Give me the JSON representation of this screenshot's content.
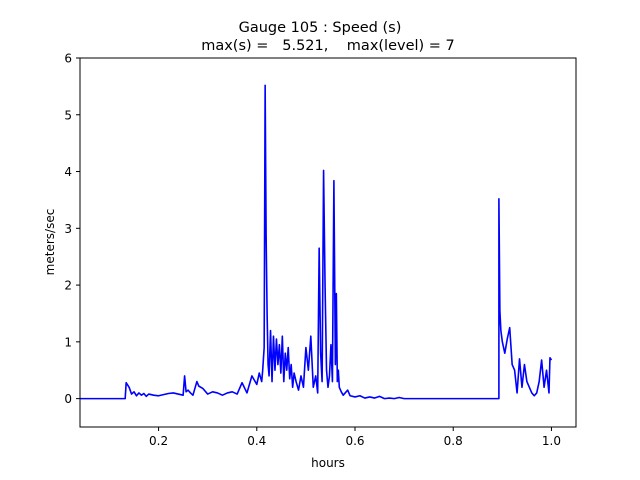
{
  "chart_data": {
    "type": "line",
    "title_line1": "Gauge 105 : Speed (s)",
    "title_line2": "max(s) =   5.521,    max(level) = 7",
    "xlabel": "hours",
    "ylabel": "meters/sec",
    "xlim": [
      0.04,
      1.05
    ],
    "ylim": [
      -0.5,
      6
    ],
    "xticks": [
      0.2,
      0.4,
      0.6,
      0.8,
      1.0
    ],
    "xtick_labels": [
      "0.2",
      "0.4",
      "0.6",
      "0.8",
      "1.0"
    ],
    "yticks": [
      0,
      1,
      2,
      3,
      4,
      5,
      6
    ],
    "ytick_labels": [
      "0",
      "1",
      "2",
      "3",
      "4",
      "5",
      "6"
    ],
    "grid": false,
    "series": [
      {
        "color": "#0000ff",
        "x": [
          0.04,
          0.132,
          0.134,
          0.14,
          0.145,
          0.15,
          0.155,
          0.16,
          0.165,
          0.17,
          0.175,
          0.18,
          0.19,
          0.2,
          0.21,
          0.22,
          0.23,
          0.24,
          0.25,
          0.253,
          0.256,
          0.26,
          0.265,
          0.27,
          0.278,
          0.282,
          0.29,
          0.3,
          0.31,
          0.32,
          0.33,
          0.34,
          0.35,
          0.36,
          0.37,
          0.38,
          0.39,
          0.4,
          0.405,
          0.41,
          0.412,
          0.415,
          0.417,
          0.419,
          0.421,
          0.423,
          0.425,
          0.428,
          0.431,
          0.434,
          0.437,
          0.44,
          0.443,
          0.446,
          0.449,
          0.452,
          0.455,
          0.458,
          0.461,
          0.464,
          0.467,
          0.47,
          0.473,
          0.476,
          0.48,
          0.485,
          0.49,
          0.495,
          0.5,
          0.505,
          0.51,
          0.515,
          0.52,
          0.524,
          0.527,
          0.53,
          0.533,
          0.536,
          0.539,
          0.542,
          0.545,
          0.548,
          0.551,
          0.554,
          0.557,
          0.56,
          0.562,
          0.564,
          0.566,
          0.568,
          0.572,
          0.576,
          0.58,
          0.585,
          0.59,
          0.6,
          0.61,
          0.62,
          0.63,
          0.64,
          0.65,
          0.66,
          0.67,
          0.68,
          0.69,
          0.7,
          0.75,
          0.8,
          0.85,
          0.893,
          0.893,
          0.895,
          0.897,
          0.9,
          0.905,
          0.91,
          0.915,
          0.92,
          0.925,
          0.93,
          0.935,
          0.94,
          0.945,
          0.95,
          0.955,
          0.96,
          0.965,
          0.97,
          0.975,
          0.98,
          0.985,
          0.99,
          0.995,
          0.997,
          1.0
        ],
        "y": [
          0,
          0,
          0.28,
          0.2,
          0.08,
          0.12,
          0.05,
          0.1,
          0.06,
          0.09,
          0.04,
          0.08,
          0.06,
          0.05,
          0.07,
          0.09,
          0.1,
          0.08,
          0.06,
          0.4,
          0.12,
          0.15,
          0.1,
          0.06,
          0.3,
          0.22,
          0.18,
          0.08,
          0.12,
          0.1,
          0.06,
          0.1,
          0.12,
          0.08,
          0.28,
          0.1,
          0.4,
          0.25,
          0.45,
          0.3,
          0.5,
          0.9,
          5.52,
          2.86,
          1.5,
          0.6,
          0.4,
          1.2,
          0.3,
          1.1,
          0.5,
          1.05,
          0.6,
          0.95,
          0.45,
          1.1,
          0.3,
          0.8,
          0.5,
          0.9,
          0.35,
          0.6,
          0.2,
          0.45,
          0.3,
          0.15,
          0.4,
          0.2,
          0.9,
          0.5,
          1.1,
          0.2,
          0.4,
          0.1,
          2.65,
          0.8,
          0.3,
          4.02,
          2.0,
          0.5,
          0.2,
          0.4,
          0.95,
          0.3,
          3.84,
          0.6,
          1.85,
          0.3,
          0.5,
          0.2,
          0.12,
          0.06,
          0.1,
          0.15,
          0.05,
          0.03,
          0.05,
          0.01,
          0.03,
          0.01,
          0.04,
          0,
          0.01,
          0,
          0.02,
          0,
          0,
          0,
          0,
          0,
          3.52,
          1.55,
          1.2,
          1.0,
          0.8,
          1.05,
          1.25,
          0.6,
          0.5,
          0.1,
          0.7,
          0.2,
          0.6,
          0.3,
          0.2,
          0.1,
          0.05,
          0.1,
          0.3,
          0.68,
          0.2,
          0.5,
          0.1,
          0.72,
          0.68
        ]
      }
    ]
  }
}
